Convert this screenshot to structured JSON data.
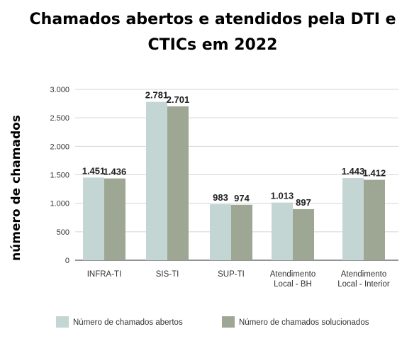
{
  "chart_data": {
    "type": "bar",
    "title_lines": [
      "Chamados abertos e atendidos pela DTI e",
      "CTICs em 2022"
    ],
    "xlabel": "",
    "ylabel": "número de chamados",
    "ylim": [
      0,
      3000
    ],
    "yticks": [
      0,
      500,
      1000,
      1500,
      2000,
      2500,
      3000
    ],
    "ytick_labels": [
      "0",
      "500",
      "1.000",
      "1.500",
      "2.000",
      "2.500",
      "3.000"
    ],
    "grid": true,
    "legend_position": "bottom",
    "categories": [
      [
        "INFRA-TI"
      ],
      [
        "SIS-TI"
      ],
      [
        "SUP-TI"
      ],
      [
        "Atendimento",
        "Local - BH"
      ],
      [
        "Atendimento",
        "Local - Interior"
      ]
    ],
    "series": [
      {
        "name": "Número de chamados abertos",
        "color": "#c4d6d4",
        "values": [
          1451,
          2781,
          983,
          1013,
          1443
        ],
        "labels": [
          "1.451",
          "2.781",
          "983",
          "1.013",
          "1.443"
        ]
      },
      {
        "name": "Número de chamados solucionados",
        "color": "#9ea794",
        "values": [
          1436,
          2701,
          974,
          897,
          1412
        ],
        "labels": [
          "1.436",
          "2.701",
          "974",
          "897",
          "1.412"
        ]
      }
    ]
  }
}
